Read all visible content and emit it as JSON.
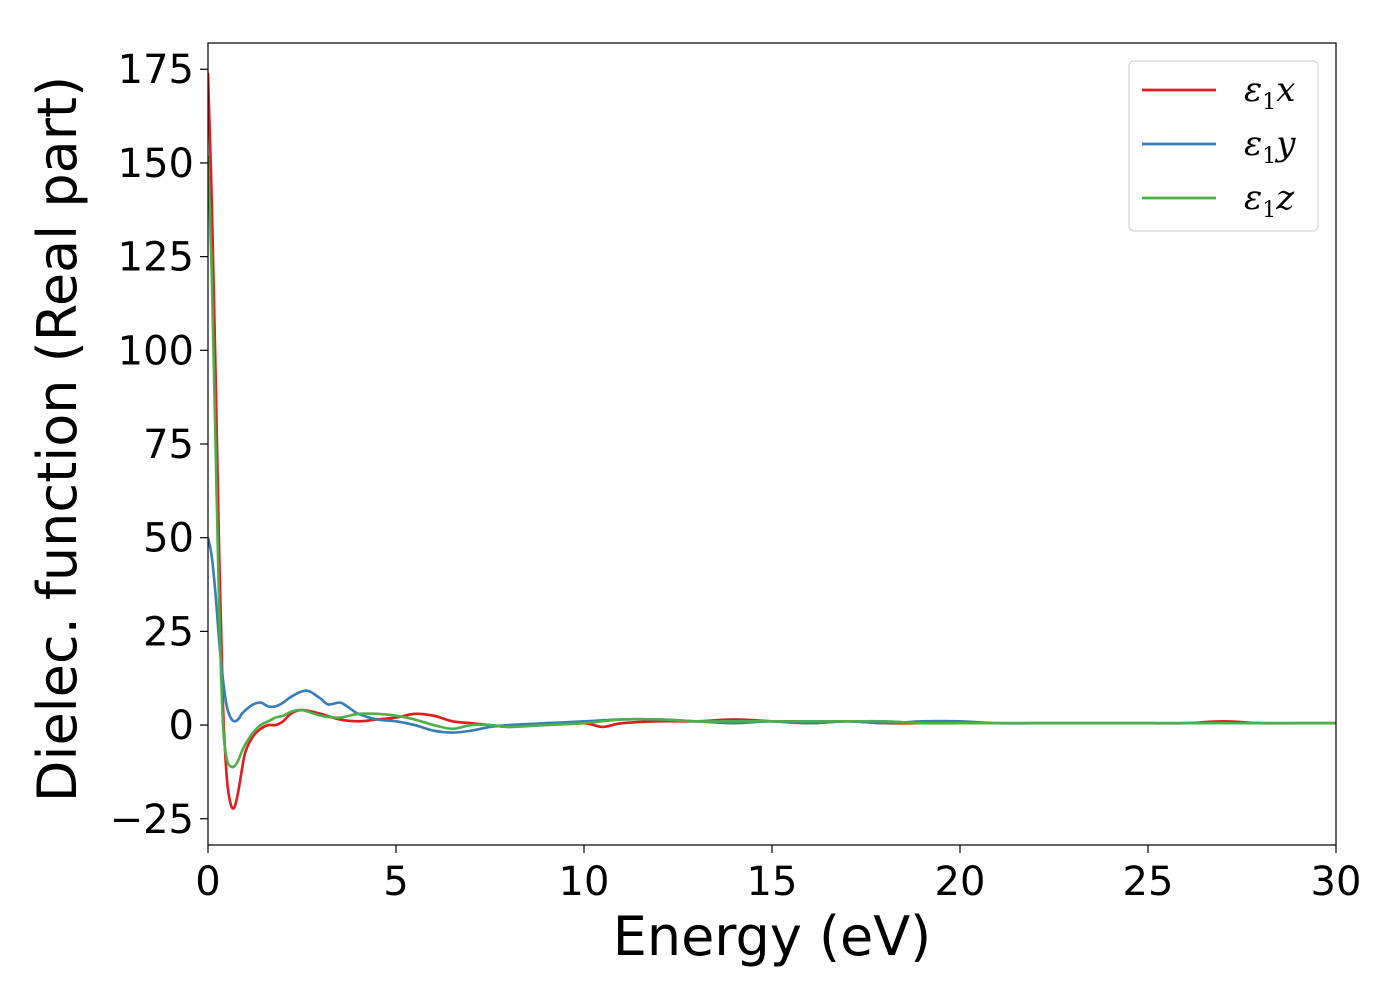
{
  "chart_data": {
    "type": "line",
    "xlabel": "Energy (eV)",
    "ylabel": "Dielec. function (Real part)",
    "xlim": [
      0,
      30
    ],
    "ylim": [
      -32,
      182
    ],
    "xticks": [
      0,
      5,
      10,
      15,
      20,
      25,
      30
    ],
    "xtick_labels": [
      "0",
      "5",
      "10",
      "15",
      "20",
      "25",
      "30"
    ],
    "yticks": [
      -25,
      0,
      25,
      50,
      75,
      100,
      125,
      150,
      175
    ],
    "ytick_labels": [
      "−25",
      "0",
      "25",
      "50",
      "75",
      "100",
      "125",
      "150",
      "175"
    ],
    "grid": false,
    "legend_position": "top-right",
    "series": [
      {
        "name": "x",
        "legend_base": "ε",
        "legend_sub": "1",
        "legend_var": "x",
        "color": "#e41a1c",
        "x": [
          0,
          0.1,
          0.2,
          0.3,
          0.4,
          0.5,
          0.6,
          0.7,
          0.8,
          0.9,
          1.0,
          1.2,
          1.4,
          1.6,
          1.8,
          2.0,
          2.2,
          2.5,
          3.0,
          3.5,
          4.0,
          4.5,
          5.0,
          5.5,
          6.0,
          6.5,
          7.0,
          7.5,
          8.0,
          8.5,
          9.0,
          10.0,
          10.5,
          11.0,
          12.0,
          13.0,
          14.0,
          15.0,
          16.0,
          17.0,
          18.0,
          19.0,
          20.0,
          21.0,
          22.0,
          23.0,
          24.0,
          25.0,
          26.0,
          27.0,
          28.0,
          29.0,
          30.0
        ],
        "y": [
          174,
          140,
          95,
          45,
          5,
          -14,
          -21,
          -22,
          -18,
          -12,
          -7,
          -3,
          -1,
          0,
          0,
          1,
          3,
          4,
          3,
          1.5,
          1,
          1.5,
          2,
          3,
          2.5,
          1,
          0.5,
          0,
          -0.5,
          0,
          0.5,
          0.5,
          -0.5,
          0.5,
          1,
          1,
          1.5,
          1,
          0.5,
          1,
          0.5,
          0.5,
          0.5,
          0.5,
          0.5,
          0.5,
          0.5,
          0.5,
          0.5,
          1,
          0.5,
          0.5,
          0.5
        ]
      },
      {
        "name": "y",
        "legend_base": "ε",
        "legend_sub": "1",
        "legend_var": "y",
        "color": "#377eb8",
        "x": [
          0,
          0.1,
          0.2,
          0.3,
          0.4,
          0.5,
          0.6,
          0.7,
          0.8,
          0.9,
          1.0,
          1.2,
          1.4,
          1.6,
          1.8,
          2.0,
          2.2,
          2.5,
          2.7,
          3.0,
          3.2,
          3.5,
          3.7,
          4.0,
          4.5,
          5.0,
          5.5,
          6.0,
          6.5,
          7.0,
          7.5,
          8.0,
          9.0,
          10.0,
          11.0,
          12.0,
          13.0,
          14.0,
          15.0,
          16.0,
          17.0,
          18.0,
          19.0,
          20.0,
          21.0,
          22.0,
          23.0,
          24.0,
          25.0,
          26.0,
          27.0,
          28.0,
          29.0,
          30.0
        ],
        "y": [
          50,
          45,
          35,
          22,
          12,
          5,
          2,
          1,
          1.5,
          3,
          4,
          5.5,
          6,
          5,
          5,
          6,
          7.5,
          9,
          9,
          7,
          5.5,
          6,
          5,
          3,
          1.5,
          1,
          0,
          -1.5,
          -2,
          -1.5,
          -0.5,
          0,
          0.5,
          1,
          1.5,
          1.5,
          1,
          0.5,
          1,
          0.5,
          1,
          0.5,
          1,
          1,
          0.5,
          0.5,
          0.5,
          0.5,
          0.5,
          0.5,
          0.5,
          0.5,
          0.5,
          0.5
        ]
      },
      {
        "name": "z",
        "legend_base": "ε",
        "legend_sub": "1",
        "legend_var": "z",
        "color": "#4daf4a",
        "x": [
          0,
          0.1,
          0.2,
          0.3,
          0.4,
          0.5,
          0.6,
          0.7,
          0.8,
          0.9,
          1.0,
          1.2,
          1.4,
          1.6,
          1.8,
          2.0,
          2.2,
          2.5,
          3.0,
          3.5,
          4.0,
          4.5,
          5.0,
          5.5,
          6.0,
          6.5,
          7.0,
          7.5,
          8.0,
          9.0,
          10.0,
          11.0,
          12.0,
          13.0,
          14.0,
          15.0,
          16.0,
          17.0,
          18.0,
          19.0,
          20.0,
          21.0,
          22.0,
          23.0,
          24.0,
          25.0,
          26.0,
          27.0,
          28.0,
          29.0,
          30.0
        ],
        "y": [
          152,
          120,
          75,
          30,
          0,
          -9,
          -11,
          -11,
          -9.5,
          -7,
          -5,
          -2,
          0,
          1,
          2,
          2.5,
          3.5,
          4,
          2.5,
          2,
          3,
          3,
          2.5,
          1.5,
          0,
          -1,
          0,
          0,
          -0.5,
          0,
          0.5,
          1.5,
          1.5,
          1,
          1,
          1,
          1,
          1,
          1,
          0.5,
          0.5,
          0.5,
          0.5,
          0.5,
          0.5,
          0.5,
          0.5,
          0.5,
          0.5,
          0.5,
          0.5
        ]
      }
    ]
  }
}
